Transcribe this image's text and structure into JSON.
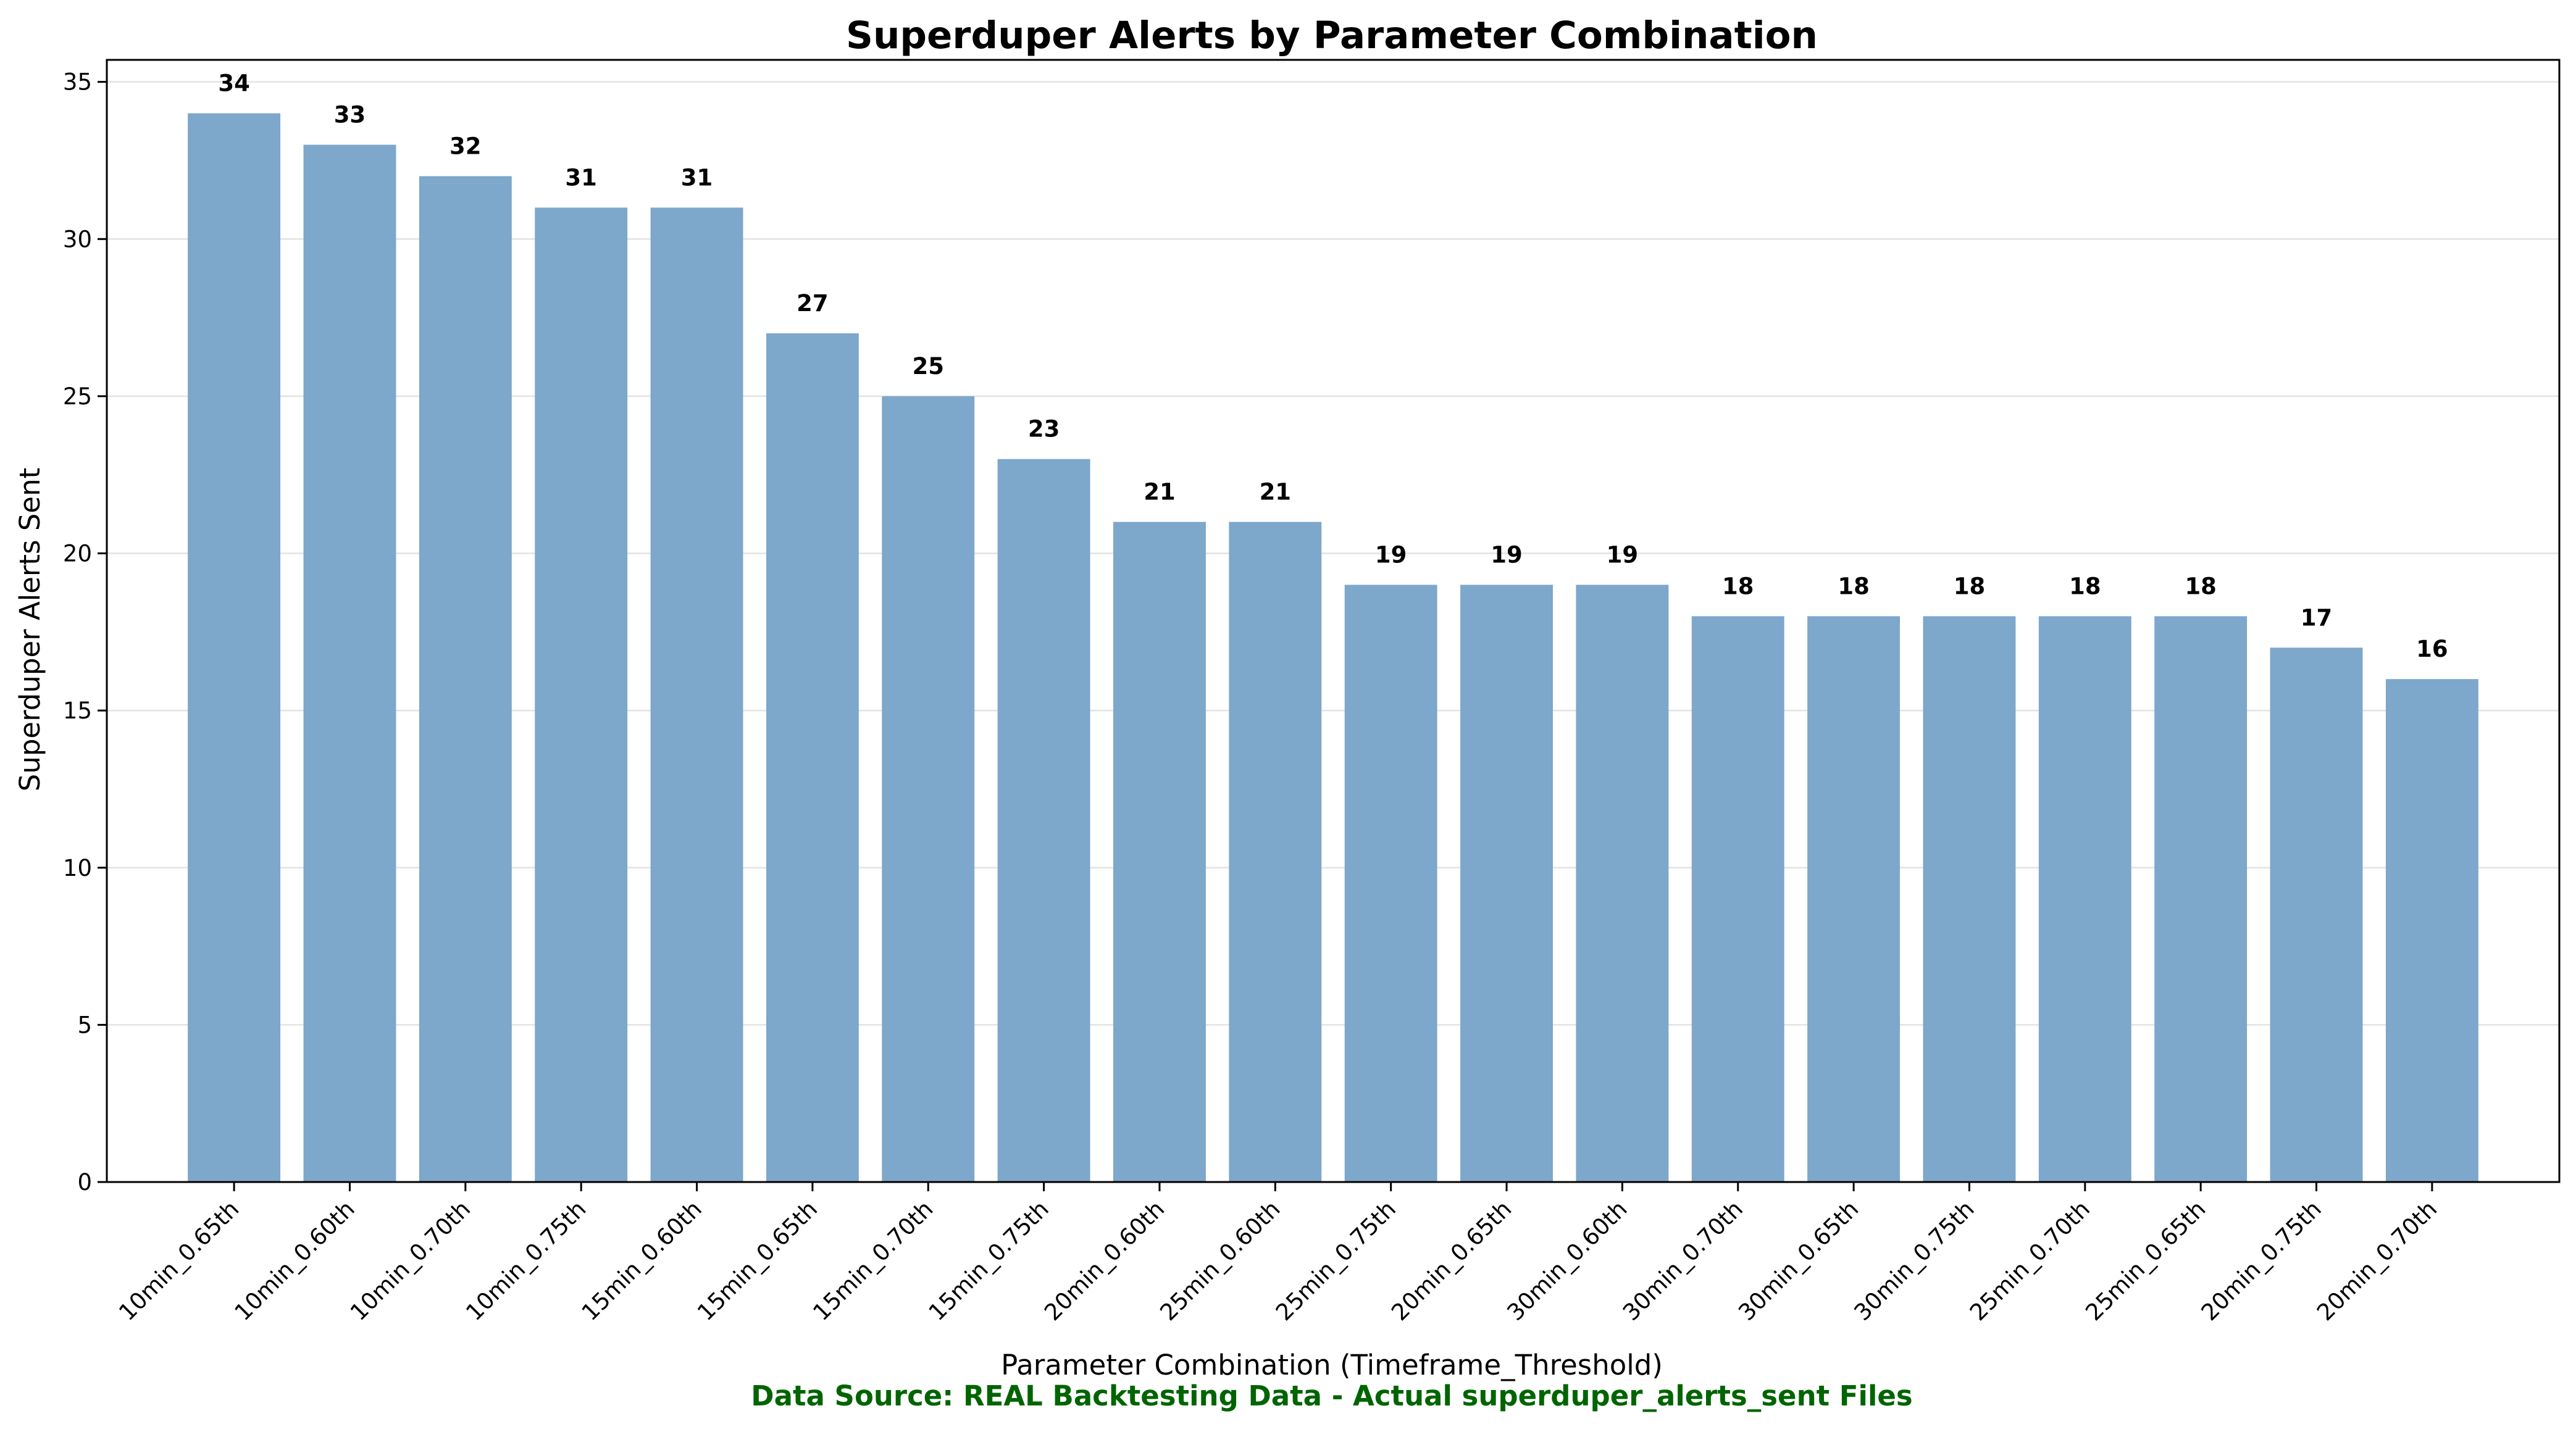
{
  "chart_data": {
    "type": "bar",
    "title": "Superduper Alerts by Parameter Combination",
    "xlabel": "Parameter Combination (Timeframe_Threshold)",
    "ylabel": "Superduper Alerts Sent",
    "categories": [
      "10min_0.65th",
      "10min_0.60th",
      "10min_0.70th",
      "10min_0.75th",
      "15min_0.60th",
      "15min_0.65th",
      "15min_0.70th",
      "15min_0.75th",
      "20min_0.60th",
      "25min_0.60th",
      "25min_0.75th",
      "20min_0.65th",
      "30min_0.60th",
      "30min_0.70th",
      "30min_0.65th",
      "30min_0.75th",
      "25min_0.70th",
      "25min_0.65th",
      "20min_0.75th",
      "20min_0.70th"
    ],
    "values": [
      34,
      33,
      32,
      31,
      31,
      27,
      25,
      23,
      21,
      21,
      19,
      19,
      19,
      18,
      18,
      18,
      18,
      18,
      17,
      16
    ],
    "ylim": [
      0,
      35.7
    ],
    "yticks": [
      0,
      5,
      10,
      15,
      20,
      25,
      30,
      35
    ],
    "grid": "y",
    "bar_color": "#7da7cb",
    "source_note": "Data Source: REAL Backtesting Data - Actual superduper_alerts_sent Files",
    "source_color": "#006400"
  }
}
